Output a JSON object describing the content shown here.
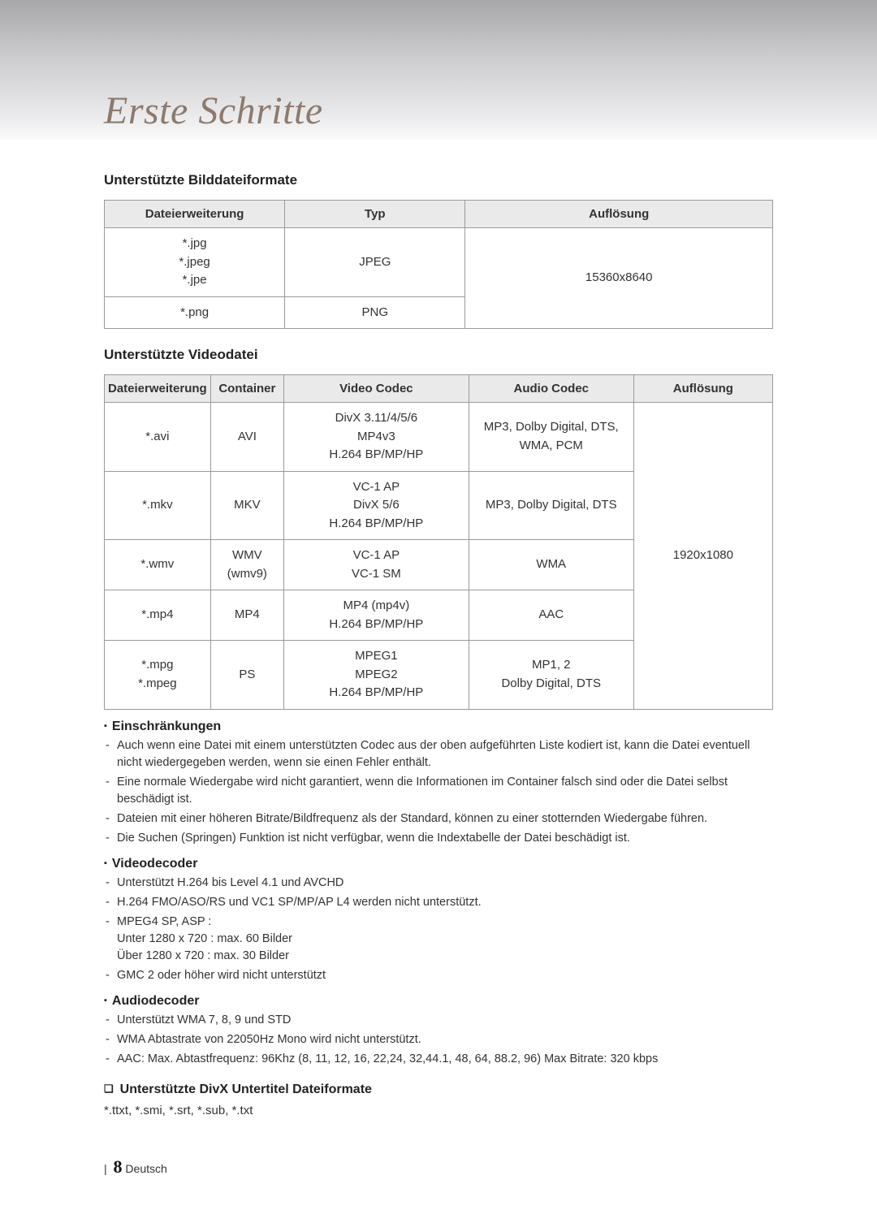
{
  "title": "Erste Schritte",
  "section_image": {
    "heading": "Unterstützte Bilddateiformate",
    "columns": [
      "Dateierweiterung",
      "Typ",
      "Auflösung"
    ],
    "rows": [
      {
        "ext": "*.jpg\n*.jpeg\n*.jpe",
        "type": "JPEG",
        "res_merged": true
      },
      {
        "ext": "*.png",
        "type": "PNG"
      }
    ],
    "resolution": "15360x8640"
  },
  "section_video": {
    "heading": "Unterstützte Videodatei",
    "columns": [
      "Dateierweiterung",
      "Container",
      "Video Codec",
      "Audio Codec",
      "Auflösung"
    ],
    "rows": [
      {
        "ext": "*.avi",
        "container": "AVI",
        "vcodec": "DivX 3.11/4/5/6\nMP4v3\nH.264 BP/MP/HP",
        "acodec": "MP3, Dolby Digital, DTS, WMA, PCM"
      },
      {
        "ext": "*.mkv",
        "container": "MKV",
        "vcodec": "VC-1 AP\nDivX 5/6\nH.264 BP/MP/HP",
        "acodec": "MP3, Dolby Digital, DTS"
      },
      {
        "ext": "*.wmv",
        "container": "WMV (wmv9)",
        "vcodec": "VC-1 AP\nVC-1 SM",
        "acodec": "WMA"
      },
      {
        "ext": "*.mp4",
        "container": "MP4",
        "vcodec": "MP4 (mp4v)\nH.264 BP/MP/HP",
        "acodec": "AAC"
      },
      {
        "ext": "*.mpg\n*.mpeg",
        "container": "PS",
        "vcodec": "MPEG1\nMPEG2\nH.264 BP/MP/HP",
        "acodec": "MP1, 2\nDolby Digital, DTS"
      }
    ],
    "resolution": "1920x1080"
  },
  "limitations": {
    "heading": "Einschränkungen",
    "items": [
      "Auch wenn eine Datei mit einem unterstützten Codec aus der oben aufgeführten Liste kodiert ist, kann die Datei eventuell nicht wiedergegeben werden, wenn sie einen Fehler enthält.",
      "Eine normale Wiedergabe wird nicht garantiert, wenn die Informationen im Container falsch sind oder die Datei selbst beschädigt ist.",
      "Dateien mit einer höheren Bitrate/Bildfrequenz als der Standard, können zu einer stotternden Wiedergabe führen.",
      "Die Suchen (Springen) Funktion ist nicht verfügbar, wenn die Indextabelle der Datei beschädigt ist."
    ]
  },
  "videodecoder": {
    "heading": "Videodecoder",
    "items": [
      "Unterstützt H.264 bis Level 4.1 und AVCHD",
      "H.264 FMO/ASO/RS und VC1 SP/MP/AP L4 werden nicht unterstützt.",
      "MPEG4 SP, ASP :\nUnter 1280 x 720 : max. 60 Bilder\nÜber 1280 x 720 : max. 30 Bilder",
      "GMC 2 oder höher wird nicht unterstützt"
    ]
  },
  "audiodecoder": {
    "heading": "Audiodecoder",
    "items": [
      "Unterstützt WMA 7, 8, 9 und STD",
      "WMA Abtastrate von 22050Hz Mono wird nicht unterstützt.",
      "AAC: Max. Abtastfrequenz: 96Khz (8, 11, 12, 16, 22,24, 32,44.1, 48, 64, 88.2, 96) Max Bitrate: 320 kbps"
    ]
  },
  "divx": {
    "heading": "Unterstützte DivX Untertitel Dateiformate",
    "text": "*.ttxt, *.smi, *.srt, *.sub, *.txt"
  },
  "footer": {
    "page": "8",
    "lang": "Deutsch"
  },
  "colors": {
    "title_color": "#8d7a6d",
    "th_bg": "#eaeaea",
    "border": "#9a9a9a",
    "text": "#333333"
  },
  "typography": {
    "title_family": "Georgia serif italic",
    "title_size_pt": 36,
    "body_family": "Arial",
    "body_size_pt": 11
  }
}
